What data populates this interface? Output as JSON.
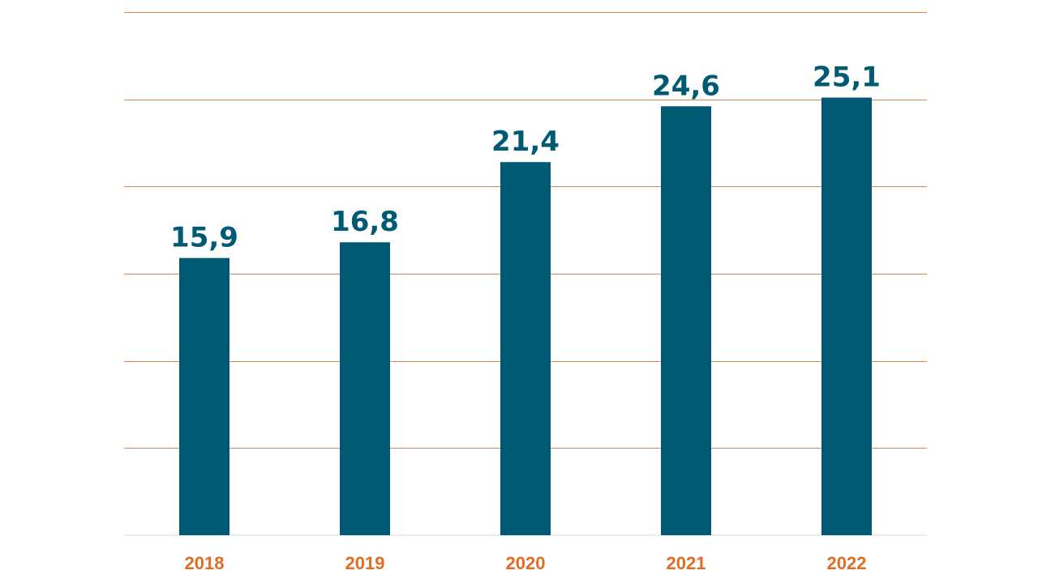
{
  "colors": {
    "bar": "#005a74",
    "value_label": "#005a74",
    "category_label": "#e36c25",
    "gridline": "#d98550",
    "baseline": "#d9d9d9"
  },
  "chart_data": {
    "type": "bar",
    "categories": [
      "2018",
      "2019",
      "2020",
      "2021",
      "2022"
    ],
    "values": [
      15.9,
      16.8,
      21.4,
      24.6,
      25.1
    ],
    "value_labels": [
      "15,9",
      "16,8",
      "21,4",
      "24,6",
      "25,1"
    ],
    "ylim": [
      0,
      30
    ],
    "gridlines": [
      5,
      10,
      15,
      20,
      25,
      30
    ],
    "grid": true,
    "legend": "none"
  }
}
